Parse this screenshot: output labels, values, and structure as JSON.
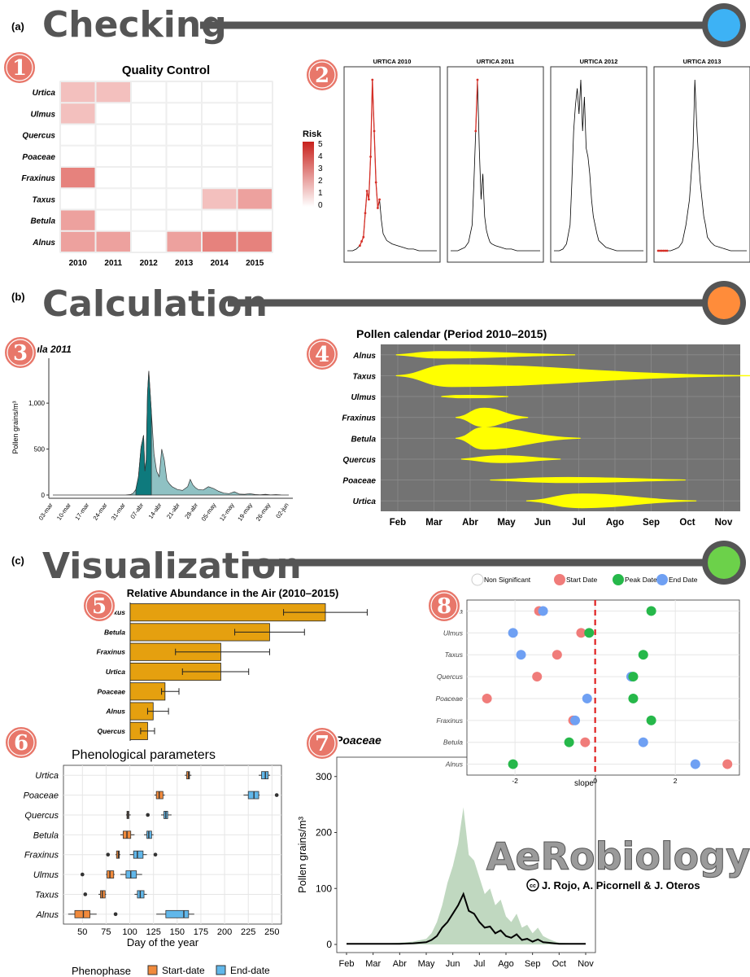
{
  "sections": [
    {
      "tag": "(a)",
      "title": "Checking",
      "dot_color": "#3db2f5"
    },
    {
      "tag": "(b)",
      "title": "Calculation",
      "dot_color": "#ff8c3a"
    },
    {
      "tag": "(c)",
      "title": "Visualization",
      "dot_color": "#6cd14a"
    }
  ],
  "step_numbers": [
    "1",
    "2",
    "3",
    "4",
    "5",
    "6",
    "7",
    "8"
  ],
  "branding": {
    "logo_text": "AeRobiology",
    "credit": "J. Rojo, A. Picornell & J. Oteros",
    "cc": "cc"
  },
  "colors": {
    "risk": "#d62f27",
    "violin": "#ffff00",
    "violin_bg": "#737373",
    "bar": "#e5a00f",
    "start": "#f08a3c",
    "end": "#61b7ea",
    "teal": "#0e7a7d",
    "ribbon": "#8cb88c"
  },
  "chart_data": [
    {
      "id": "quality_control",
      "type": "heatmap",
      "title": "Quality Control",
      "x": [
        "2010",
        "2011",
        "2012",
        "2013",
        "2014",
        "2015"
      ],
      "y": [
        "Urtica",
        "Ulmus",
        "Quercus",
        "Poaceae",
        "Fraxinus",
        "Taxus",
        "Betula",
        "Alnus"
      ],
      "values": [
        [
          1,
          1,
          0,
          0,
          0,
          0
        ],
        [
          1,
          0,
          0,
          0,
          0,
          0
        ],
        [
          0,
          0,
          0,
          0,
          0,
          0
        ],
        [
          0,
          0,
          0,
          0,
          0,
          0
        ],
        [
          3,
          0,
          0,
          0,
          0,
          0
        ],
        [
          0,
          0,
          0,
          0,
          1,
          2
        ],
        [
          2,
          0,
          0,
          0,
          0,
          0
        ],
        [
          2,
          2,
          0,
          2,
          3,
          3
        ]
      ],
      "legend_title": "Risk",
      "legend_ticks": [
        "5",
        "4",
        "3",
        "2",
        "1",
        "0"
      ]
    },
    {
      "id": "urtica_checks",
      "type": "line",
      "panels": [
        {
          "title": "URTICA 2010",
          "x": [
            0,
            6,
            10,
            14,
            18,
            20,
            22,
            24,
            26,
            28,
            30,
            32,
            34,
            36,
            38,
            40,
            44,
            50,
            56,
            62,
            68,
            74,
            80,
            86,
            92,
            98,
            100
          ],
          "y": [
            0,
            0,
            1,
            3,
            8,
            22,
            35,
            30,
            55,
            100,
            70,
            40,
            25,
            30,
            18,
            10,
            6,
            4,
            3,
            2,
            1,
            1,
            0,
            0,
            0,
            0,
            0
          ],
          "flagged_x": [
            14,
            16,
            18,
            20,
            22,
            24,
            26,
            28,
            30,
            32,
            34,
            36
          ]
        },
        {
          "title": "URTICA 2011",
          "x": [
            0,
            8,
            12,
            16,
            20,
            24,
            26,
            28,
            30,
            32,
            34,
            36,
            38,
            40,
            42,
            44,
            46,
            50,
            56,
            62,
            68,
            74,
            80,
            86,
            92,
            98,
            100
          ],
          "y": [
            0,
            0,
            1,
            2,
            5,
            15,
            40,
            70,
            100,
            60,
            30,
            45,
            20,
            12,
            8,
            5,
            4,
            3,
            2,
            1,
            1,
            0,
            0,
            0,
            0,
            0,
            0
          ],
          "flagged_x": [
            28,
            30
          ]
        },
        {
          "title": "URTICA 2012",
          "x": [
            0,
            6,
            10,
            14,
            18,
            20,
            22,
            24,
            26,
            28,
            30,
            32,
            34,
            36,
            38,
            40,
            42,
            44,
            46,
            48,
            50,
            54,
            58,
            64,
            70,
            80,
            100
          ],
          "y": [
            0,
            0,
            1,
            4,
            15,
            40,
            70,
            85,
            95,
            80,
            100,
            70,
            90,
            60,
            55,
            45,
            30,
            20,
            15,
            10,
            6,
            4,
            2,
            1,
            0,
            0,
            0
          ],
          "flagged_x": []
        },
        {
          "title": "URTICA 2013",
          "x": [
            0,
            5,
            10,
            15,
            20,
            24,
            28,
            32,
            36,
            38,
            40,
            42,
            44,
            46,
            48,
            50,
            52,
            54,
            56,
            60,
            64,
            70,
            76,
            82,
            90,
            100
          ],
          "y": [
            0,
            0,
            0,
            0,
            1,
            2,
            5,
            15,
            30,
            45,
            60,
            100,
            75,
            55,
            40,
            30,
            20,
            15,
            8,
            5,
            3,
            2,
            1,
            0,
            0,
            0
          ],
          "flagged_x": [
            1,
            3,
            5,
            7,
            9,
            11
          ]
        }
      ]
    },
    {
      "id": "betula_2011",
      "type": "area",
      "title": "Betula 2011",
      "ylabel": "Pollen grains/m³",
      "yticks": [
        "0",
        "500",
        "1,000"
      ],
      "xticks": [
        "03-mar",
        "10-mar",
        "17-mar",
        "24-mar",
        "31-mar",
        "07-abr",
        "14-abr",
        "21-abr",
        "28-abr",
        "05-may",
        "12-may",
        "19-may",
        "26-may",
        "02-jun"
      ],
      "x": [
        0,
        5,
        10,
        15,
        20,
        25,
        28,
        30,
        31,
        32,
        33,
        34,
        35,
        35.5,
        36,
        36.5,
        37,
        38,
        39,
        40,
        41,
        42,
        43,
        44,
        45,
        46,
        48,
        50,
        52,
        53,
        54,
        55,
        56,
        58,
        60,
        62,
        64,
        66,
        68,
        70,
        72,
        74,
        76,
        78,
        80,
        82,
        84,
        86,
        88,
        91
      ],
      "y": [
        0,
        0,
        0,
        0,
        0,
        0,
        0,
        5,
        20,
        60,
        200,
        520,
        650,
        260,
        380,
        1100,
        1350,
        900,
        450,
        260,
        200,
        500,
        380,
        160,
        120,
        90,
        60,
        50,
        90,
        170,
        110,
        80,
        60,
        55,
        90,
        70,
        40,
        20,
        15,
        35,
        10,
        8,
        15,
        5,
        3,
        8,
        2,
        4,
        1,
        0
      ]
    },
    {
      "id": "pollen_calendar",
      "type": "violin",
      "title": "Pollen calendar (Period 2010–2015)",
      "months": [
        "Feb",
        "Mar",
        "Abr",
        "May",
        "Jun",
        "Jul",
        "Ago",
        "Sep",
        "Oct",
        "Nov"
      ],
      "taxa": [
        {
          "name": "Alnus",
          "start": -0.05,
          "end": 4.9,
          "peak": 1.2,
          "width": 0.28
        },
        {
          "name": "Taxus",
          "start": -0.05,
          "end": 9.8,
          "peak": 1.5,
          "width": 0.95
        },
        {
          "name": "Ulmus",
          "start": 1.2,
          "end": 3.05,
          "peak": 2.0,
          "width": 0.1
        },
        {
          "name": "Fraxinus",
          "start": 1.6,
          "end": 3.6,
          "peak": 2.4,
          "width": 0.8
        },
        {
          "name": "Betula",
          "start": 1.6,
          "end": 5.05,
          "peak": 2.4,
          "width": 0.95
        },
        {
          "name": "Quercus",
          "start": 1.75,
          "end": 4.5,
          "peak": 2.9,
          "width": 0.3
        },
        {
          "name": "Poaceae",
          "start": 2.55,
          "end": 7.95,
          "peak": 4.7,
          "width": 0.22
        },
        {
          "name": "Urtica",
          "start": 3.55,
          "end": 8.25,
          "peak": 5.1,
          "width": 0.6
        }
      ]
    },
    {
      "id": "relative_abundance",
      "type": "bar",
      "title": "Relative Abundance in the Air (2010–2015)",
      "categories": [
        "Taxus",
        "Betula",
        "Fraxinus",
        "Urtica",
        "Poaceae",
        "Alnus",
        "Quercus"
      ],
      "values": [
        28,
        20,
        13,
        13,
        5,
        3.3,
        2.5
      ],
      "errors": [
        [
          22,
          34
        ],
        [
          15,
          25
        ],
        [
          6.5,
          20
        ],
        [
          7.5,
          17
        ],
        [
          4.5,
          7
        ],
        [
          2.5,
          5.5
        ],
        [
          1.5,
          3.5
        ]
      ],
      "xlim": [
        0,
        35
      ]
    },
    {
      "id": "phenological_parameters",
      "type": "boxplot",
      "title": "Phenological parameters",
      "xlabel": "Day of the year",
      "xticks": [
        "50",
        "75",
        "100",
        "125",
        "150",
        "175",
        "200",
        "225",
        "250"
      ],
      "xlim": [
        30,
        260
      ],
      "legend_title": "Phenophase",
      "legend_entries": [
        "Start-date",
        "End-date"
      ],
      "categories": [
        "Urtica",
        "Poaceae",
        "Quercus",
        "Betula",
        "Fraxinus",
        "Ulmus",
        "Taxus",
        "Alnus"
      ],
      "start": [
        {
          "q": [
            158,
            160,
            162,
            163,
            165
          ],
          "out": []
        },
        {
          "q": [
            126,
            128,
            131,
            135,
            137
          ],
          "out": []
        },
        {
          "q": [
            96,
            97,
            98,
            99,
            101
          ],
          "out": [
            119
          ]
        },
        {
          "q": [
            90,
            93,
            97,
            101,
            105
          ],
          "out": []
        },
        {
          "q": [
            85,
            86,
            88,
            89,
            90
          ],
          "out": [
            77
          ]
        },
        {
          "q": [
            75,
            76,
            79,
            83,
            84
          ],
          "out": [
            50
          ]
        },
        {
          "q": [
            67,
            69,
            71,
            74,
            75
          ],
          "out": [
            53
          ]
        },
        {
          "q": [
            35,
            42,
            51,
            58,
            65
          ],
          "out": [
            85
          ]
        }
      ],
      "end": [
        {
          "q": [
            236,
            239,
            243,
            246,
            248
          ],
          "out": []
        },
        {
          "q": [
            220,
            225,
            231,
            236,
            237
          ],
          "out": [
            255
          ]
        },
        {
          "q": [
            133,
            136,
            138,
            140,
            144
          ],
          "out": []
        },
        {
          "q": [
            115,
            118,
            120,
            123,
            125
          ],
          "out": []
        },
        {
          "q": [
            100,
            104,
            108,
            114,
            118
          ],
          "out": [
            127
          ]
        },
        {
          "q": [
            90,
            96,
            101,
            107,
            113
          ],
          "out": []
        },
        {
          "q": [
            105,
            108,
            111,
            115,
            118
          ],
          "out": []
        },
        {
          "q": [
            128,
            138,
            157,
            162,
            168
          ],
          "out": []
        }
      ]
    },
    {
      "id": "poaceae_curve",
      "type": "line",
      "title": "Poaceae",
      "ylabel": "Pollen grains/m³",
      "yticks": [
        "0",
        "100",
        "200",
        "300"
      ],
      "ylim": [
        0,
        320
      ],
      "months": [
        "Feb",
        "Mar",
        "Abr",
        "May",
        "Jun",
        "Jul",
        "Ago",
        "Sep",
        "Oct",
        "Nov"
      ],
      "x": [
        0,
        0.5,
        1,
        1.5,
        2,
        2.5,
        3,
        3.2,
        3.4,
        3.6,
        3.8,
        4,
        4.2,
        4.4,
        4.6,
        4.8,
        5,
        5.2,
        5.4,
        5.6,
        5.8,
        6,
        6.2,
        6.4,
        6.6,
        6.8,
        7,
        7.2,
        7.4,
        7.6,
        7.8,
        8,
        8.5,
        9
      ],
      "mean": [
        1,
        1,
        1,
        1,
        1,
        2,
        4,
        8,
        15,
        30,
        40,
        55,
        70,
        90,
        60,
        55,
        40,
        30,
        32,
        20,
        25,
        15,
        12,
        18,
        8,
        10,
        5,
        9,
        4,
        3,
        2,
        1,
        1,
        1
      ],
      "upper": [
        2,
        2,
        2,
        2,
        3,
        5,
        10,
        20,
        40,
        70,
        110,
        140,
        180,
        245,
        160,
        150,
        120,
        90,
        100,
        70,
        80,
        50,
        40,
        55,
        30,
        35,
        20,
        30,
        15,
        10,
        6,
        3,
        2,
        2
      ]
    },
    {
      "id": "trend_slopes",
      "type": "scatter",
      "xlabel": "slope",
      "xticks": [
        "-2",
        "0",
        "2"
      ],
      "xlim": [
        -3.2,
        3.6
      ],
      "legend_entries": [
        "Non Significant",
        "Start Date",
        "Peak Date",
        "End Date"
      ],
      "legend_colors": [
        "#ffffff",
        "#f07c7a",
        "#26b84a",
        "#6fa0f3"
      ],
      "categories": [
        "Urtica",
        "Ulmus",
        "Taxus",
        "Quercus",
        "Poaceae",
        "Fraxinus",
        "Betula",
        "Alnus"
      ],
      "points": [
        {
          "cat": "Urtica",
          "start": -1.4,
          "peak": 1.4,
          "end": -1.3
        },
        {
          "cat": "Ulmus",
          "start": -0.35,
          "peak": -0.15,
          "end": -2.05
        },
        {
          "cat": "Taxus",
          "start": -0.95,
          "peak": 1.2,
          "end": -1.85
        },
        {
          "cat": "Quercus",
          "start": -1.45,
          "peak": 0.95,
          "end": 0.9
        },
        {
          "cat": "Poaceae",
          "start": -2.7,
          "peak": 0.95,
          "end": -0.2
        },
        {
          "cat": "Fraxinus",
          "start": -0.55,
          "peak": 1.4,
          "end": -0.5
        },
        {
          "cat": "Betula",
          "start": -0.25,
          "peak": -0.65,
          "end": 1.2
        },
        {
          "cat": "Alnus",
          "start": 3.3,
          "peak": -2.05,
          "end": 2.5
        }
      ]
    }
  ]
}
